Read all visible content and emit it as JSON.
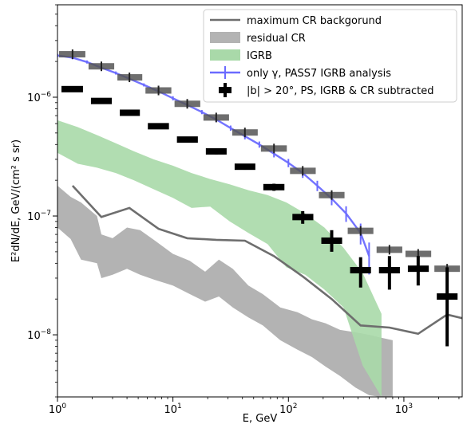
{
  "chart_data": {
    "type": "line",
    "xlabel": "E, GeV",
    "ylabel": "E²dN/dE, GeV/(cm² s sr)",
    "xscale": "log",
    "yscale": "log",
    "xlim": [
      1,
      3200
    ],
    "ylim": [
      3e-09,
      6e-06
    ],
    "grid": false,
    "legend_position": "top-right",
    "x_ticks": [
      {
        "value": 1,
        "label": "10^0"
      },
      {
        "value": 10,
        "label": "10^1"
      },
      {
        "value": 100,
        "label": "10^2"
      },
      {
        "value": 1000,
        "label": "10^3"
      }
    ],
    "y_ticks": [
      {
        "value": 1e-08,
        "label": "10^-8"
      },
      {
        "value": 1e-07,
        "label": "10^-7"
      },
      {
        "value": 1e-06,
        "label": "10^-6"
      }
    ],
    "series": [
      {
        "name": "maximum CR backgorund",
        "kind": "line",
        "color": "#6e6e6e",
        "x": [
          1.35,
          2.4,
          4.2,
          7.5,
          13.3,
          23.7,
          42,
          75,
          133,
          237,
          422,
          750,
          1330,
          2370,
          3200
        ],
        "y": [
          1.8e-07,
          9.8e-08,
          1.17e-07,
          7.8e-08,
          6.5e-08,
          6.3e-08,
          6.2e-08,
          4.6e-08,
          3.1e-08,
          2e-08,
          1.2e-08,
          1.15e-08,
          1.02e-08,
          1.48e-08,
          1.38e-08
        ]
      },
      {
        "name": "residual CR",
        "kind": "band",
        "color": "#b3b3b3",
        "x": [
          1.0,
          1.3,
          1.6,
          2.2,
          2.4,
          3.0,
          4.0,
          5.2,
          7.0,
          10,
          14,
          19,
          25,
          33,
          45,
          60,
          85,
          120,
          160,
          210,
          280,
          380,
          500,
          620,
          800
        ],
        "upper": [
          1.8e-07,
          1.45e-07,
          1.3e-07,
          1e-07,
          7e-08,
          6.5e-08,
          8e-08,
          7.6e-08,
          6.2e-08,
          4.8e-08,
          4.2e-08,
          3.4e-08,
          4.3e-08,
          3.6e-08,
          2.6e-08,
          2.2e-08,
          1.7e-08,
          1.55e-08,
          1.35e-08,
          1.25e-08,
          1.1e-08,
          1.05e-08,
          1e-08,
          9.5e-09,
          9e-09
        ],
        "lower": [
          8e-08,
          6.4e-08,
          4.3e-08,
          4e-08,
          3e-08,
          3.2e-08,
          3.6e-08,
          3.2e-08,
          2.9e-08,
          2.6e-08,
          2.2e-08,
          1.9e-08,
          2.1e-08,
          1.7e-08,
          1.4e-08,
          1.2e-08,
          9e-09,
          7.5e-09,
          6.5e-09,
          5.4e-09,
          4.5e-09,
          3.6e-09,
          3.1e-09,
          3e-09,
          3e-09
        ]
      },
      {
        "name": "IGRB",
        "kind": "band",
        "color": "#a9d9a9",
        "x": [
          1.0,
          1.5,
          2.2,
          3.2,
          4.6,
          6.8,
          10,
          14.5,
          21,
          31,
          45,
          66,
          96,
          140,
          205,
          300,
          440,
          640
        ],
        "upper": [
          6.4e-07,
          5.6e-07,
          4.8e-07,
          4.1e-07,
          3.5e-07,
          3e-07,
          2.65e-07,
          2.3e-07,
          2.05e-07,
          1.85e-07,
          1.65e-07,
          1.5e-07,
          1.3e-07,
          1.05e-07,
          8e-08,
          5.4e-08,
          3.3e-08,
          1.5e-08
        ],
        "lower": [
          3.4e-07,
          2.75e-07,
          2.55e-07,
          2.3e-07,
          2e-07,
          1.68e-07,
          1.42e-07,
          1.17e-07,
          1.2e-07,
          9e-08,
          7.2e-08,
          5.8e-08,
          3.7e-08,
          3.2e-08,
          2.4e-08,
          1.7e-08,
          5.5e-09,
          3e-09
        ]
      },
      {
        "name": "only γ, PASS7 IGRB analysis",
        "kind": "line-errorbar",
        "color": "#6b6bff",
        "x": [
          1.0,
          1.35,
          1.8,
          2.4,
          3.2,
          4.2,
          5.6,
          7.5,
          10,
          13.3,
          17.8,
          23.7,
          31.6,
          42,
          56,
          75,
          100,
          133,
          178,
          237,
          316,
          422,
          500
        ],
        "y": [
          2.25e-06,
          2.15e-06,
          1.98e-06,
          1.77e-06,
          1.6e-06,
          1.43e-06,
          1.27e-06,
          1.12e-06,
          9.8e-07,
          8.6e-07,
          7.5e-07,
          6.5e-07,
          5.5e-07,
          4.7e-07,
          4e-07,
          3.35e-07,
          2.8e-07,
          2.3e-07,
          1.8e-07,
          1.4e-07,
          1.05e-07,
          7.2e-08,
          4.6e-08
        ],
        "yerr_frac": [
          0.03,
          0.03,
          0.03,
          0.03,
          0.03,
          0.03,
          0.03,
          0.03,
          0.04,
          0.04,
          0.04,
          0.05,
          0.05,
          0.06,
          0.06,
          0.07,
          0.08,
          0.09,
          0.1,
          0.12,
          0.15,
          0.2,
          0.3
        ]
      },
      {
        "name": "|b| > 20°, PS, IGRB & CR subtracted",
        "kind": "errorbar-boxes",
        "color": "#000000",
        "x": [
          1.35,
          2.4,
          4.2,
          7.5,
          13.3,
          23.7,
          42,
          75,
          133,
          237,
          422,
          750,
          1330,
          2370
        ],
        "xlow": [
          1.0,
          1.8,
          3.2,
          5.6,
          10,
          17.8,
          31.6,
          56,
          100,
          178,
          316,
          562,
          1000,
          1780
        ],
        "xhigh": [
          1.8,
          3.2,
          5.6,
          10,
          17.8,
          31.6,
          56,
          100,
          178,
          316,
          562,
          1000,
          1780,
          3160
        ],
        "y": [
          1.17e-06,
          9.3e-07,
          7.4e-07,
          5.7e-07,
          4.4e-07,
          3.5e-07,
          2.6e-07,
          1.75e-07,
          9.8e-08,
          6.2e-08,
          3.5e-08,
          3.5e-08,
          3.6e-08,
          2.1e-08
        ],
        "yerr_low": [
          6e-08,
          4e-08,
          3e-08,
          3e-08,
          2e-08,
          2e-08,
          1.5e-08,
          1.2e-08,
          1.2e-08,
          1.2e-08,
          1e-08,
          1.1e-08,
          1e-08,
          1.3e-08
        ],
        "yerr_high": [
          6e-08,
          4e-08,
          3e-08,
          3e-08,
          2e-08,
          2e-08,
          1.5e-08,
          1.2e-08,
          1.2e-08,
          1.4e-08,
          1e-08,
          1.1e-08,
          1e-08,
          1.6e-08
        ]
      },
      {
        "name": "",
        "kind": "total-boxes",
        "color": "#555555",
        "x": [
          1.35,
          2.4,
          4.2,
          7.5,
          13.3,
          23.7,
          42,
          75,
          133,
          237,
          422,
          750,
          1330,
          2370
        ],
        "xlow": [
          1.0,
          1.8,
          3.2,
          5.6,
          10,
          17.8,
          31.6,
          56,
          100,
          178,
          316,
          562,
          1000,
          1780
        ],
        "xhigh": [
          1.8,
          3.2,
          5.6,
          10,
          17.8,
          31.6,
          56,
          100,
          178,
          316,
          562,
          1000,
          1780,
          3160
        ],
        "y": [
          2.3e-06,
          1.82e-06,
          1.47e-06,
          1.14e-06,
          8.8e-07,
          6.75e-07,
          5.05e-07,
          3.7e-07,
          2.4e-07,
          1.5e-07,
          7.5e-08,
          5.2e-08,
          4.8e-08,
          3.6e-08
        ]
      }
    ]
  }
}
